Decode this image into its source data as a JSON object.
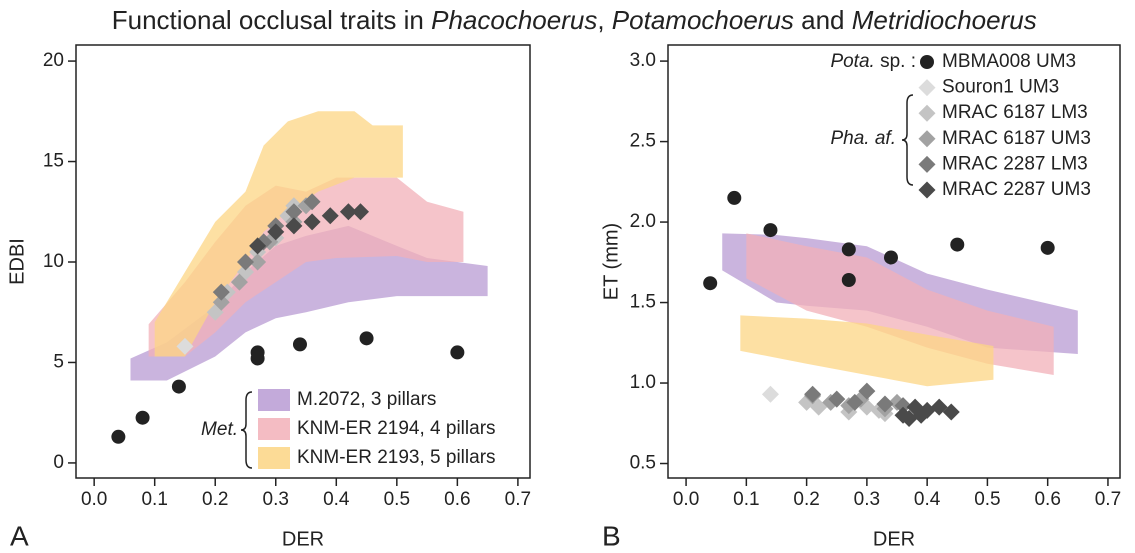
{
  "title": [
    "Functional occlusal traits in ",
    "Phacochoerus",
    ", ",
    "Potamochoerus",
    " and ",
    "Metridiochoerus"
  ],
  "chart_data": [
    {
      "type": "scatter",
      "panel_label": "A",
      "xlabel": "DER",
      "ylabel": "EDBI",
      "xlim": [
        -0.03,
        0.72
      ],
      "ylim": [
        -0.75,
        20.8
      ],
      "xticks": [
        {
          "value": 0,
          "label": "0.0"
        },
        0.1,
        0.2,
        0.3,
        0.4,
        0.5,
        0.6,
        0.7
      ],
      "yticks": [
        0,
        5,
        10,
        15,
        20
      ],
      "legend": "lower right",
      "group_labels": [
        {
          "italic": "Met."
        }
      ],
      "bands": [
        {
          "name": "M.2072, 3 pillars",
          "color": "#b89bd3",
          "x": [
            0.06,
            0.12,
            0.2,
            0.25,
            0.3,
            0.35,
            0.42,
            0.5,
            0.55,
            0.65
          ],
          "upper": [
            5.2,
            6,
            7.8,
            9.5,
            10.8,
            11.3,
            11.8,
            10.8,
            10.2,
            9.8
          ],
          "lower": [
            4.1,
            4.1,
            5.3,
            6.5,
            7.2,
            7.5,
            8,
            8.3,
            8.3,
            8.3
          ]
        },
        {
          "name": "KNM-ER 2194, 4 pillars",
          "color": "#f2b0b8",
          "x": [
            0.09,
            0.15,
            0.2,
            0.25,
            0.3,
            0.35,
            0.4,
            0.5,
            0.55,
            0.61
          ],
          "upper": [
            6.9,
            9,
            11,
            12.8,
            13.8,
            13.5,
            14.2,
            14.2,
            13,
            12.5
          ],
          "lower": [
            5.3,
            5.3,
            6.5,
            8,
            9,
            10,
            10.2,
            10.3,
            10,
            10
          ]
        },
        {
          "name": "KNM-ER 2193, 5 pillars",
          "color": "#fcd584",
          "x": [
            0.1,
            0.15,
            0.2,
            0.25,
            0.28,
            0.32,
            0.37,
            0.43,
            0.46,
            0.51
          ],
          "upper": [
            7,
            9.5,
            12,
            13.5,
            15.8,
            17,
            17.5,
            17.5,
            16.8,
            16.8
          ],
          "lower": [
            5.3,
            5.3,
            8,
            10,
            11.5,
            12.5,
            13.5,
            14.2,
            14.2,
            14.2
          ]
        }
      ],
      "series": [
        {
          "color": "#222222",
          "marker": "circle",
          "x": [
            0.04,
            0.08,
            0.14,
            0.27,
            0.27,
            0.34,
            0.45,
            0.6
          ],
          "values": [
            1.3,
            2.25,
            3.8,
            5.2,
            5.5,
            5.9,
            6.2,
            5.5
          ]
        },
        {
          "color": "#dcdcdc",
          "marker": "diamond",
          "x": [
            0.15
          ],
          "values": [
            5.8
          ]
        },
        {
          "color": "#c4c4c4",
          "marker": "diamond",
          "x": [
            0.2,
            0.22,
            0.25,
            0.27,
            0.3,
            0.32,
            0.33
          ],
          "values": [
            7.5,
            8.5,
            9.5,
            10.5,
            11.2,
            12.3,
            12.8
          ]
        },
        {
          "color": "#a2a2a2",
          "marker": "diamond",
          "x": [
            0.21,
            0.24,
            0.27,
            0.29,
            0.33,
            0.35
          ],
          "values": [
            8,
            9,
            10,
            11,
            12,
            12.8
          ]
        },
        {
          "color": "#7a7a7a",
          "marker": "diamond",
          "x": [
            0.21,
            0.25,
            0.28,
            0.3,
            0.33,
            0.36
          ],
          "values": [
            8.5,
            10,
            11,
            11.8,
            12.5,
            13
          ]
        },
        {
          "color": "#4a4a4a",
          "marker": "diamond",
          "x": [
            0.27,
            0.3,
            0.33,
            0.36,
            0.39,
            0.42,
            0.44
          ],
          "values": [
            10.8,
            11.5,
            11.8,
            12,
            12.3,
            12.5,
            12.5
          ]
        }
      ]
    },
    {
      "type": "scatter",
      "panel_label": "B",
      "xlabel": "DER",
      "ylabel": "ET (mm)",
      "xlim": [
        -0.03,
        0.72
      ],
      "ylim": [
        0.41,
        3.1
      ],
      "xticks": [
        {
          "value": 0,
          "label": "0.0"
        },
        0.1,
        0.2,
        0.3,
        0.4,
        0.5,
        0.6,
        0.7
      ],
      "yticks": [
        0.5,
        {
          "value": 1,
          "label": "1.0"
        },
        1.5,
        {
          "value": 2,
          "label": "2.0"
        },
        2.5,
        {
          "value": 3,
          "label": "3.0"
        }
      ],
      "legend": "upper right",
      "group_labels": [
        {
          "italic": "Pota.",
          "plain": " sp. :"
        },
        {
          "italic": "Pha. af."
        }
      ],
      "bands": [
        {
          "color": "#b89bd3",
          "x": [
            0.06,
            0.15,
            0.2,
            0.3,
            0.4,
            0.5,
            0.65
          ],
          "upper": [
            1.93,
            1.92,
            1.9,
            1.85,
            1.68,
            1.58,
            1.45
          ],
          "lower": [
            1.7,
            1.5,
            1.48,
            1.45,
            1.35,
            1.22,
            1.18
          ]
        },
        {
          "color": "#f2b0b8",
          "x": [
            0.1,
            0.2,
            0.3,
            0.4,
            0.5,
            0.61
          ],
          "upper": [
            1.93,
            1.85,
            1.78,
            1.58,
            1.45,
            1.35
          ],
          "lower": [
            1.65,
            1.45,
            1.35,
            1.22,
            1.12,
            1.05
          ]
        },
        {
          "color": "#fcd584",
          "x": [
            0.09,
            0.2,
            0.3,
            0.4,
            0.51
          ],
          "upper": [
            1.42,
            1.4,
            1.37,
            1.3,
            1.23
          ],
          "lower": [
            1.2,
            1.12,
            1.05,
            0.98,
            1.02
          ]
        }
      ],
      "series": [
        {
          "name": "MBMA008 UM3",
          "color": "#222222",
          "marker": "circle",
          "x": [
            0.04,
            0.08,
            0.14,
            0.27,
            0.27,
            0.34,
            0.45,
            0.6
          ],
          "values": [
            1.62,
            2.15,
            1.95,
            1.83,
            1.64,
            1.78,
            1.86,
            1.84
          ]
        },
        {
          "name": "Souron1 UM3",
          "color": "#dcdcdc",
          "marker": "diamond",
          "x": [
            0.14
          ],
          "values": [
            0.93
          ]
        },
        {
          "name": "MRAC 6187 LM3",
          "color": "#c4c4c4",
          "marker": "diamond",
          "x": [
            0.2,
            0.22,
            0.25,
            0.27,
            0.3,
            0.32,
            0.33
          ],
          "values": [
            0.88,
            0.85,
            0.9,
            0.82,
            0.85,
            0.83,
            0.81
          ]
        },
        {
          "name": "MRAC 6187 UM3",
          "color": "#a2a2a2",
          "marker": "diamond",
          "x": [
            0.21,
            0.24,
            0.27,
            0.29,
            0.33,
            0.35
          ],
          "values": [
            0.92,
            0.88,
            0.86,
            0.9,
            0.84,
            0.88
          ]
        },
        {
          "name": "MRAC 2287 LM3",
          "color": "#7a7a7a",
          "marker": "diamond",
          "x": [
            0.21,
            0.25,
            0.28,
            0.3,
            0.33,
            0.36
          ],
          "values": [
            0.93,
            0.9,
            0.88,
            0.95,
            0.87,
            0.86
          ]
        },
        {
          "name": "MRAC 2287 UM3",
          "color": "#4a4a4a",
          "marker": "diamond",
          "x": [
            0.36,
            0.37,
            0.38,
            0.39,
            0.4,
            0.42,
            0.44
          ],
          "values": [
            0.8,
            0.78,
            0.85,
            0.8,
            0.83,
            0.85,
            0.82
          ]
        }
      ]
    }
  ]
}
